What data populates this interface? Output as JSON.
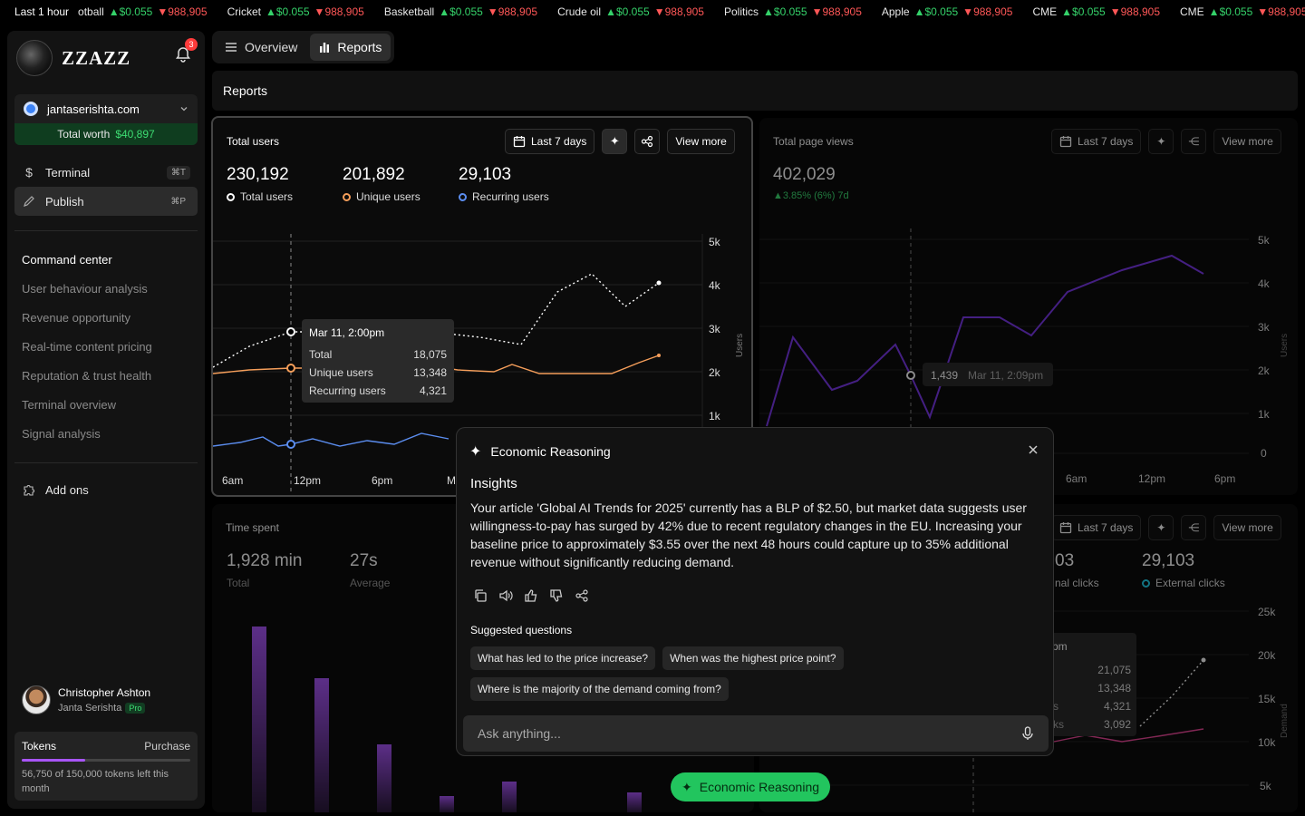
{
  "ticker": {
    "lead": "Last 1 hour",
    "items": [
      {
        "name": "otball",
        "up": "$0.055",
        "down": "988,905"
      },
      {
        "name": "Cricket",
        "up": "$0.055",
        "down": "988,905"
      },
      {
        "name": "Basketball",
        "up": "$0.055",
        "down": "988,905"
      },
      {
        "name": "Crude oil",
        "up": "$0.055",
        "down": "988,905"
      },
      {
        "name": "Politics",
        "up": "$0.055",
        "down": "988,905"
      },
      {
        "name": "Apple",
        "up": "$0.055",
        "down": "988,905"
      },
      {
        "name": "CME",
        "up": "$0.055",
        "down": "988,905"
      },
      {
        "name": "CME",
        "up": "$0.055",
        "down": "988,905"
      }
    ]
  },
  "sidebar": {
    "brand": "ZZAZZ",
    "notif_count": "3",
    "site": "jantaserishta.com",
    "worth_label": "Total worth",
    "worth_value": "$40,897",
    "nav": [
      {
        "label": "Terminal",
        "shortcut": "⌘T"
      },
      {
        "label": "Publish",
        "shortcut": "⌘P"
      }
    ],
    "command_center": "Command center",
    "sub_items": [
      "User behaviour analysis",
      "Revenue opportunity",
      "Real-time content pricing",
      "Reputation & trust health",
      "Terminal overview",
      "Signal analysis"
    ],
    "addons": "Add ons",
    "user_name": "Christopher Ashton",
    "user_org": "Janta Serishta",
    "user_plan": "Pro",
    "tokens_label": "Tokens",
    "purchase_label": "Purchase",
    "tokens_note": "56,750 of 150,000 tokens left this month",
    "tokens_fraction": 0.378
  },
  "tabs": {
    "overview": "Overview",
    "reports": "Reports"
  },
  "page_title": "Reports",
  "panels": {
    "users": {
      "title": "Total users",
      "range": "Last 7 days",
      "view_more": "View more",
      "stats": [
        {
          "value": "230,192",
          "label": "Total users",
          "color": "#ffffff"
        },
        {
          "value": "201,892",
          "label": "Unique users",
          "color": "#f59e5a"
        },
        {
          "value": "29,103",
          "label": "Recurring users",
          "color": "#5b8def"
        }
      ],
      "y_ticks": [
        "5k",
        "4k",
        "3k",
        "2k",
        "1k"
      ],
      "y_axis": "Users",
      "x_ticks": [
        "6am",
        "12pm",
        "6pm",
        "M"
      ],
      "tooltip": {
        "title": "Mar 11, 2:00pm",
        "rows": [
          {
            "label": "Total",
            "value": "18,075"
          },
          {
            "label": "Unique users",
            "value": "13,348"
          },
          {
            "label": "Recurring users",
            "value": "4,321"
          }
        ]
      }
    },
    "pageviews": {
      "title": "Total page views",
      "range": "Last 7 days",
      "view_more": "View more",
      "value": "402,029",
      "delta": "▲3.85% (6%) 7d",
      "y_ticks": [
        "5k",
        "4k",
        "3k",
        "2k",
        "1k",
        "0"
      ],
      "y_axis": "Users",
      "x_ticks": [
        "6am",
        "12pm",
        "6pm"
      ],
      "hover_value": "1,439",
      "hover_date": "Mar 11, 2:09pm"
    },
    "time": {
      "title": "Time spent",
      "stats": [
        {
          "value": "1,928 min",
          "label": "Total"
        },
        {
          "value": "27s",
          "label": "Average"
        }
      ]
    },
    "clicks": {
      "range": "Last 7 days",
      "view_more": "View more",
      "stats": [
        {
          "value": "03",
          "label": "nal clicks"
        },
        {
          "value": "29,103",
          "label": "External clicks"
        }
      ],
      "y_ticks": [
        "25k",
        "20k",
        "15k",
        "10k",
        "5k"
      ],
      "y_axis": "Demand",
      "tooltip_head": "pm",
      "tooltip_values": [
        "21,075",
        "13,348",
        "4,321",
        "3,092"
      ],
      "tooltip_labels": [
        "s",
        "ks"
      ]
    }
  },
  "modal": {
    "title": "Economic Reasoning",
    "insights": "Insights",
    "body": "Your article 'Global AI Trends for 2025' currently has a BLP of $2.50, but market data suggests user willingness-to-pay has surged by 42% due to recent regulatory changes in the EU. Increasing your baseline price to approximately $3.55 over the next 48 hours could capture up to 35% additional revenue without significantly reducing demand.",
    "suggested_title": "Suggested questions",
    "suggestions": [
      "What has led to the price increase?",
      "When was the highest price point?",
      "Where is the majority of the demand coming from?"
    ],
    "ask_placeholder": "Ask anything..."
  },
  "er_button": "Economic Reasoning",
  "colors": {
    "accent_green": "#22c55e",
    "purple": "#7c3aed",
    "orange": "#f59e5a",
    "blue": "#5b8def"
  }
}
